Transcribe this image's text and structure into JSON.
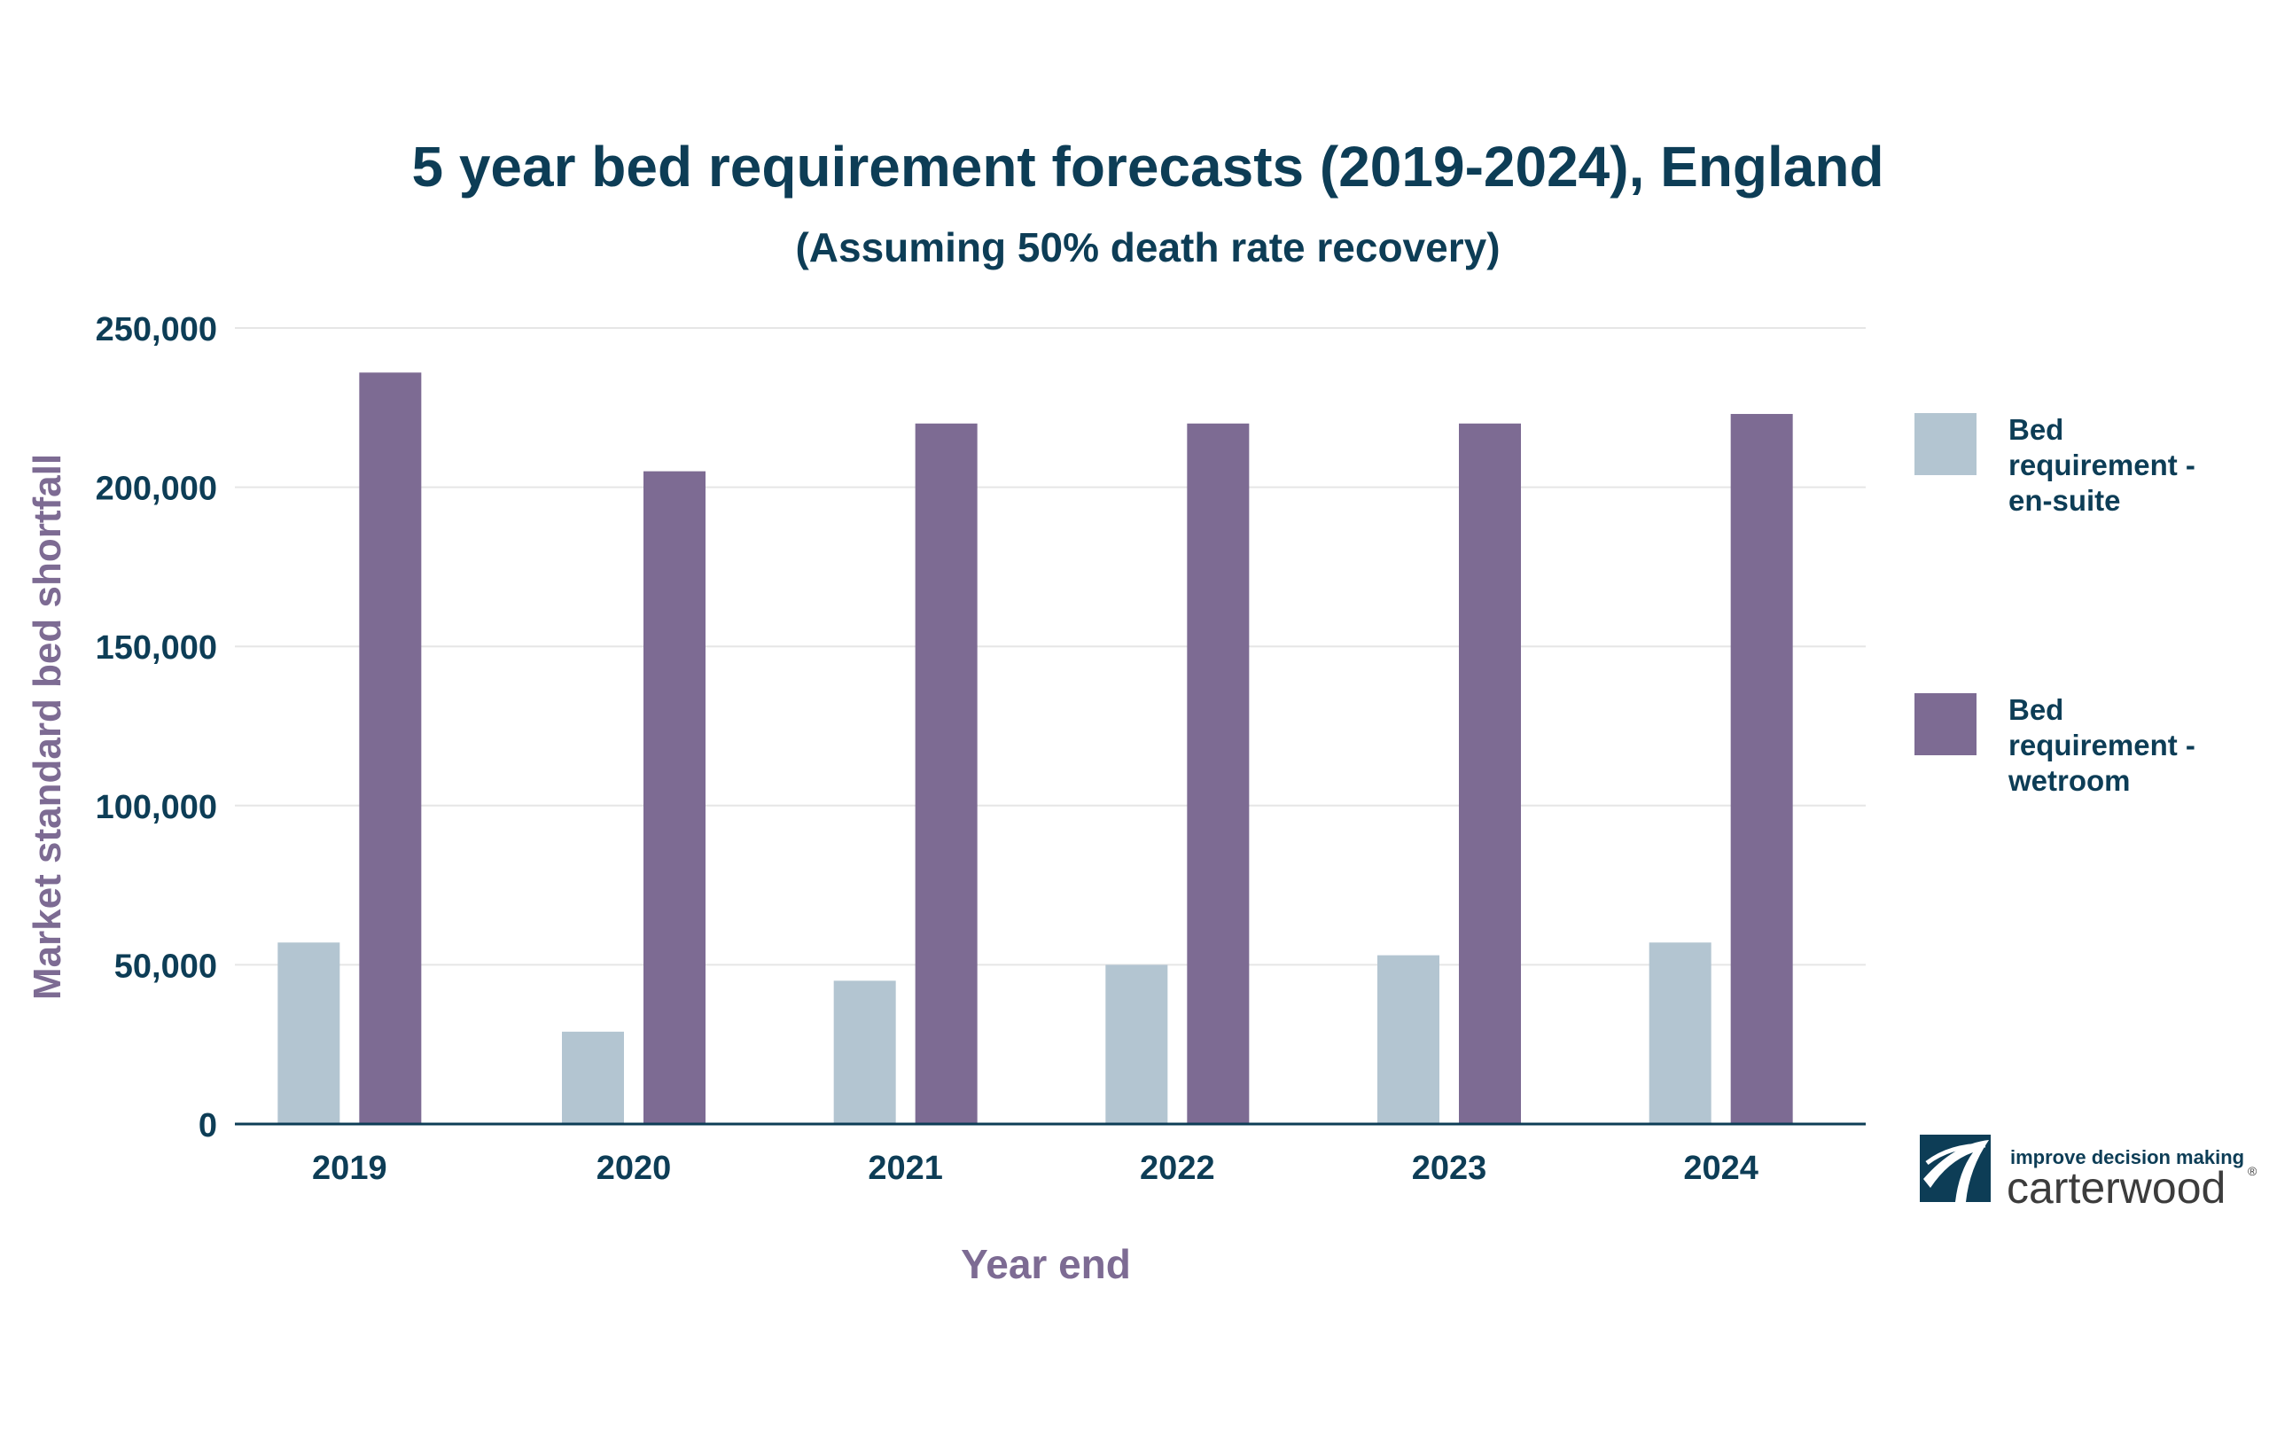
{
  "chart_data": {
    "type": "bar",
    "title": "5 year bed requirement forecasts (2019-2024), England",
    "subtitle": "(Assuming 50% death rate recovery)",
    "xlabel": "Year end",
    "ylabel": "Market standard bed shortfall",
    "categories": [
      "2019",
      "2020",
      "2021",
      "2022",
      "2023",
      "2024"
    ],
    "ylim": [
      0,
      250000
    ],
    "yticks": [
      0,
      50000,
      100000,
      150000,
      200000,
      250000
    ],
    "ytick_labels": [
      "0",
      "50,000",
      "100,000",
      "150,000",
      "200,000",
      "250,000"
    ],
    "grid": true,
    "legend_position": "right",
    "series": [
      {
        "name": "Bed requirement - en-suite",
        "color": "#b3c5d1",
        "values": [
          57000,
          29000,
          45000,
          50000,
          53000,
          57000
        ]
      },
      {
        "name": "Bed requirement - wetroom",
        "color": "#7d6b93",
        "values": [
          236000,
          205000,
          220000,
          220000,
          220000,
          223000
        ]
      }
    ]
  },
  "colors": {
    "text_dark": "#0d3d56",
    "axis_label": "#7d6b93",
    "grid": "#e6e6e6"
  },
  "logo": {
    "tagline": "improve decision making",
    "name": "carterwood",
    "mark": "®"
  }
}
